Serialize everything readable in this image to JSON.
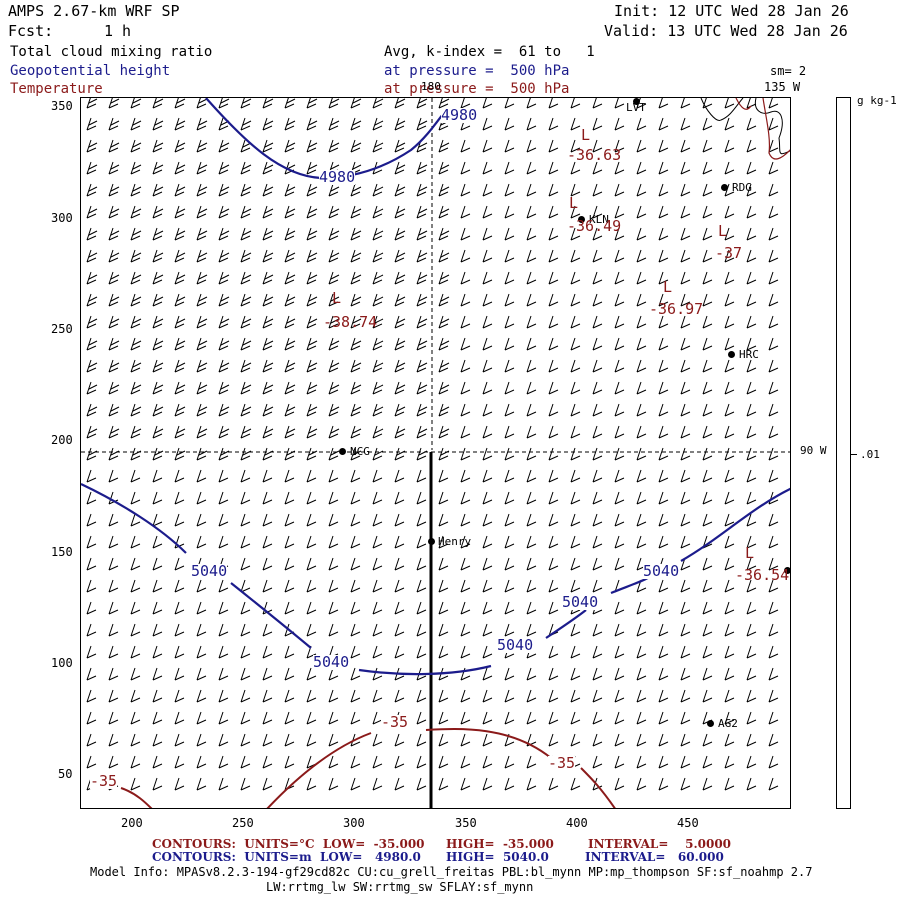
{
  "header": {
    "title": "AMPS 2.67-km WRF SP",
    "init": "Init: 12 UTC Wed 28 Jan 26",
    "fcst_label": "Fcst:",
    "fcst_value": "1 h",
    "valid": "Valid: 13 UTC Wed 28 Jan 26"
  },
  "fields": {
    "cloud": "Total cloud mixing ratio",
    "geopotential": "Geopotential height",
    "temperature": "Temperature",
    "avg_line": "Avg, k-index =  61 to   1",
    "pressure_line_1": "at pressure =  500 hPa",
    "pressure_line_2": "at pressure =  500 hPa",
    "sm": "sm= 2"
  },
  "colorbar": {
    "unit": "g kg-1",
    "tick": ".01"
  },
  "map_labels": {
    "lon_180": "180",
    "lon_135w": "135 W",
    "lon_90w": "90 W"
  },
  "axes": {
    "x_ticks": [
      "200",
      "250",
      "300",
      "350",
      "400",
      "450"
    ],
    "y_ticks": [
      "350",
      "300",
      "250",
      "200",
      "150",
      "100",
      "50"
    ]
  },
  "stations": [
    {
      "name": "LVT"
    },
    {
      "name": "RDG"
    },
    {
      "name": "KLN"
    },
    {
      "name": "HRC"
    },
    {
      "name": "NCG"
    },
    {
      "name": "Henry"
    },
    {
      "name": "AG2"
    }
  ],
  "contour_labels": {
    "height": [
      "4980",
      "4980",
      "5040",
      "5040",
      "5040",
      "5040",
      "5040"
    ],
    "temperature": [
      "-36.63",
      "-36.49",
      "-37",
      "-36.97",
      "-38.74",
      "-36.54",
      "-35",
      "-35",
      "-35"
    ],
    "lows": [
      "L",
      "L",
      "L",
      "L",
      "L",
      "L"
    ]
  },
  "footer": {
    "line1_a": "CONTOURS:  UNITS=°C  LOW=  -35.000",
    "line1_b": "HIGH=  -35.000",
    "line1_c": "INTERVAL=    5.0000",
    "line2_a": "CONTOURS:  UNITS=m  LOW=   4980.0",
    "line2_b": "HIGH=  5040.0",
    "line2_c": "INTERVAL=   60.000",
    "model_info": "Model Info: MPASv8.2.3-194-gf29cd82c CU:cu_grell_freitas PBL:bl_mynn MP:mp_thompson SF:sf_noahmp 2.7",
    "model_info_2": "LW:rrtmg_lw SW:rrtmg_sw SFLAY:sf_mynn"
  },
  "colors": {
    "height": "#1c1c8c",
    "temperature": "#8b1a1a",
    "ink": "#000000"
  }
}
